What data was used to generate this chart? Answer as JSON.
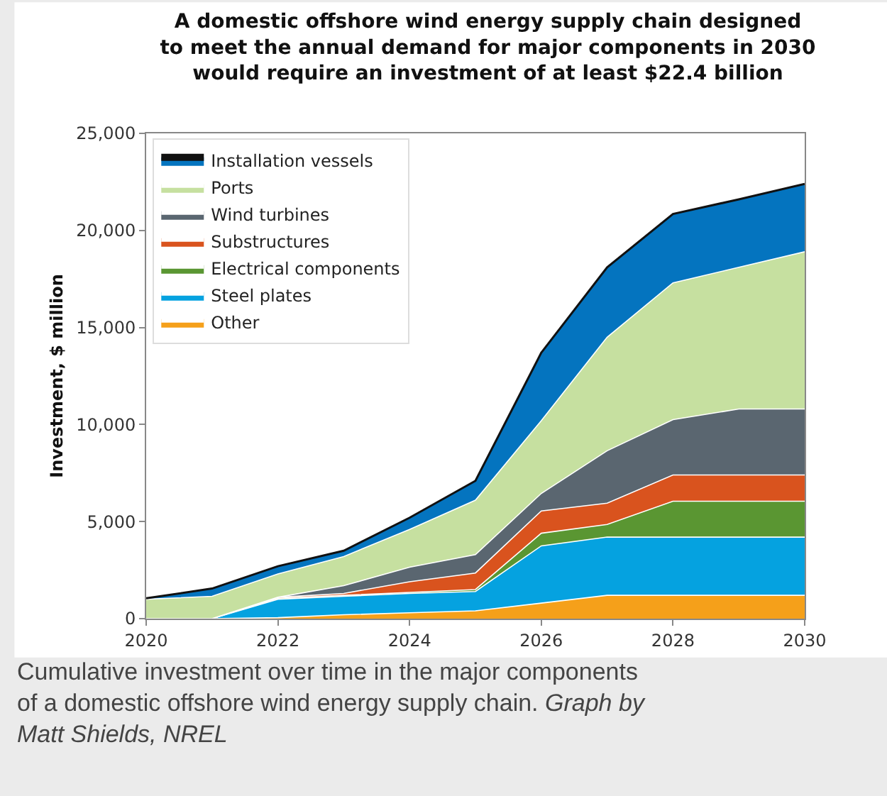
{
  "chart_data": {
    "type": "area",
    "stacked": true,
    "title": "A domestic offshore wind energy supply chain designed\nto meet the annual demand for major components in 2030\nwould require an investment of at least $22.4 billion",
    "ylabel": "Investment, $ million",
    "x": [
      2020,
      2021,
      2022,
      2023,
      2024,
      2025,
      2026,
      2027,
      2028,
      2029,
      2030
    ],
    "series": [
      {
        "name": "Other",
        "color": "#f5a01a",
        "values": [
          0,
          0,
          50,
          200,
          300,
          400,
          800,
          1200,
          1200,
          1200,
          1200
        ]
      },
      {
        "name": "Steel plates",
        "color": "#05a2e0",
        "values": [
          0,
          0,
          950,
          950,
          1000,
          1000,
          2950,
          3000,
          3000,
          3000,
          3000
        ]
      },
      {
        "name": "Electrical components",
        "color": "#5a9632",
        "values": [
          0,
          0,
          50,
          50,
          50,
          100,
          650,
          650,
          1850,
          1850,
          1850
        ]
      },
      {
        "name": "Substructures",
        "color": "#d9531e",
        "values": [
          0,
          0,
          50,
          100,
          550,
          850,
          1150,
          1100,
          1350,
          1350,
          1350
        ]
      },
      {
        "name": "Wind turbines",
        "color": "#5a6670",
        "values": [
          0,
          0,
          0,
          400,
          750,
          950,
          900,
          2700,
          2850,
          3400,
          3400
        ]
      },
      {
        "name": "Ports",
        "color": "#c6e0a0",
        "values": [
          1000,
          1150,
          1200,
          1500,
          1950,
          2800,
          3750,
          5850,
          7050,
          7300,
          8100
        ]
      },
      {
        "name": "Installation vessels",
        "color": "#0474bf",
        "values": [
          50,
          400,
          400,
          300,
          600,
          1000,
          3500,
          3600,
          3550,
          3500,
          3500
        ]
      }
    ],
    "xlim": [
      2020,
      2030
    ],
    "xticks": [
      2020,
      2022,
      2024,
      2026,
      2028,
      2030
    ],
    "ylim": [
      0,
      25000
    ],
    "yticks": [
      {
        "value": 0,
        "label": "0"
      },
      {
        "value": 5000,
        "label": "5,000"
      },
      {
        "value": 10000,
        "label": "10,000"
      },
      {
        "value": 15000,
        "label": "15,000"
      },
      {
        "value": 20000,
        "label": "20,000"
      },
      {
        "value": 25000,
        "label": "25,000"
      }
    ],
    "legend": "top left",
    "annotations": [
      "Cumulative investment over time in the major components\nof a domestic offshore wind energy supply chain.",
      "Graph by\nMatt Shields, NREL"
    ]
  }
}
